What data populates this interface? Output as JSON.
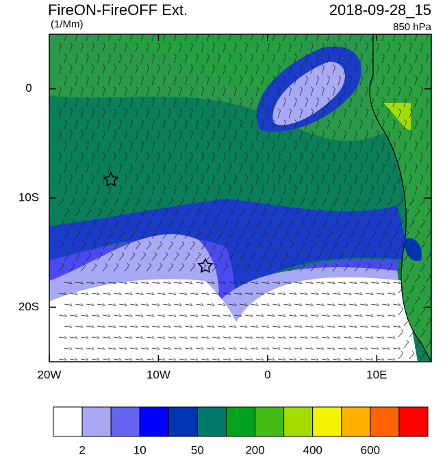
{
  "map": {
    "title": "FireON-FireOFF Ext.",
    "units": "(1/Mm)",
    "datetime": "2018-09-28_15",
    "level": "850 hPa",
    "xlim": [
      -20,
      15
    ],
    "ylim": [
      -25,
      5
    ],
    "xticks": [
      {
        "value": -20,
        "label": "20W"
      },
      {
        "value": -10,
        "label": "10W"
      },
      0,
      {
        "value": 10,
        "label": "10E"
      }
    ],
    "yticks": [
      0,
      {
        "value": -10,
        "label": "10S"
      },
      {
        "value": -20,
        "label": "20S"
      }
    ],
    "colorbar": {
      "colors": [
        "#ffffff",
        "#a8a8f4",
        "#6464f0",
        "#0000ff",
        "#0034b4",
        "#00786a",
        "#00a41c",
        "#44bc14",
        "#a4dc00",
        "#f4f400",
        "#ffb000",
        "#ff6400",
        "#ff0000"
      ],
      "ticks": [
        2,
        10,
        50,
        200,
        400,
        600
      ]
    }
  }
}
